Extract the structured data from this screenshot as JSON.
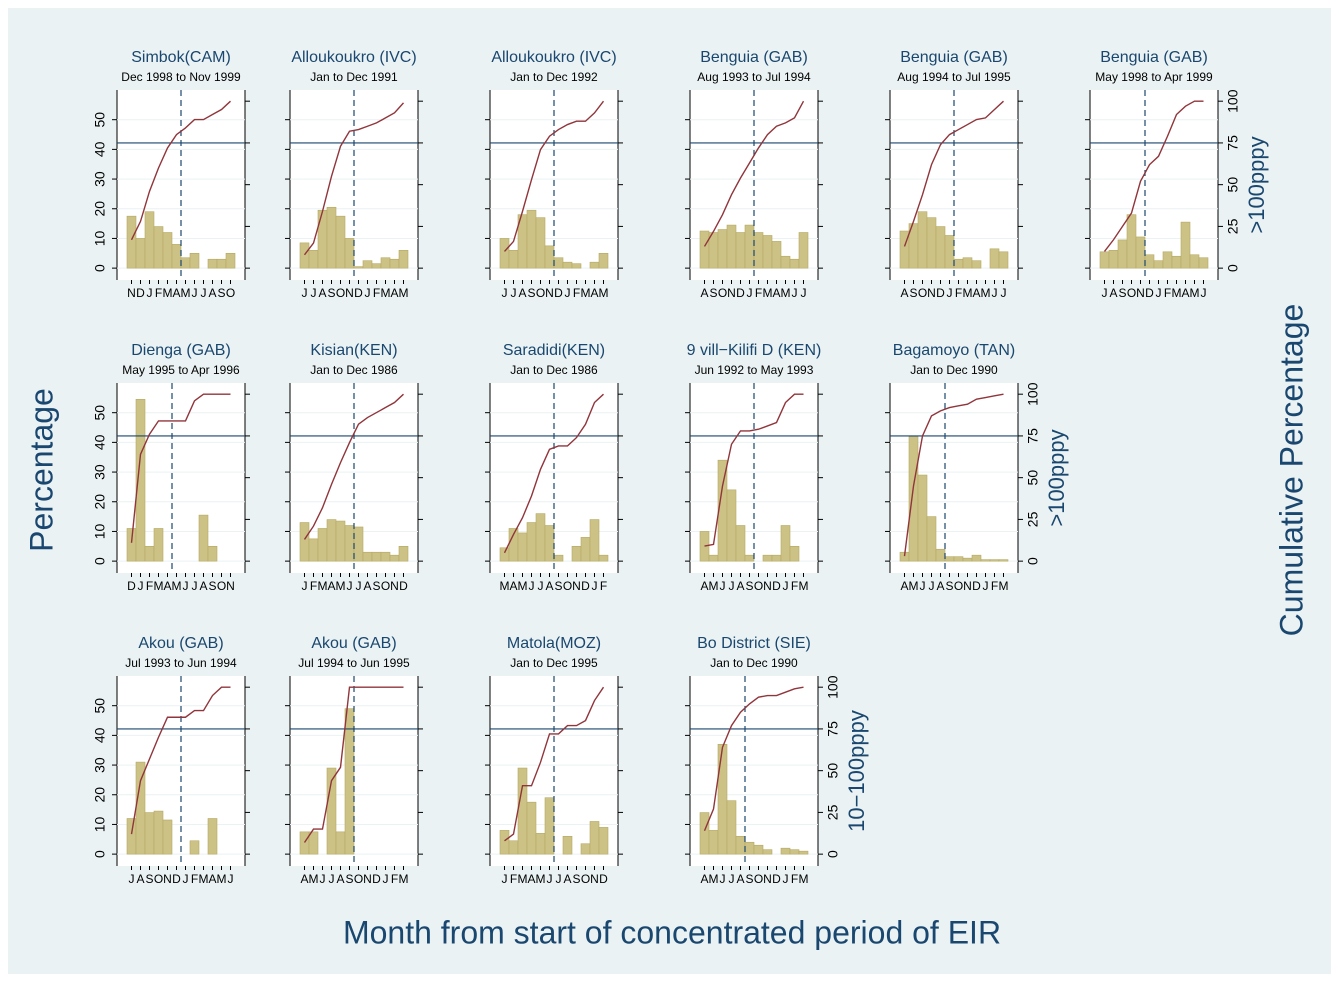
{
  "axis_labels": {
    "y": "Percentage",
    "y2": "Cumulative Percentage",
    "x": "Month from start of concentrated period of EIR"
  },
  "chart_data": [
    {
      "type": "bar",
      "title": "Simbok(CAM)",
      "subtitle": "Dec 1998 to Nov 1999",
      "categories": [
        "N",
        "D",
        "J",
        "F",
        "M",
        "A",
        "M",
        "J",
        "J",
        "A",
        "S",
        "O"
      ],
      "values": [
        17.5,
        10,
        19,
        14,
        12,
        8,
        3.5,
        5,
        0,
        3,
        3,
        5
      ],
      "cumulative": [
        17,
        28,
        46,
        60,
        72,
        80,
        84,
        89,
        89,
        92,
        95,
        100
      ],
      "reference_x": 5.5,
      "reference_y2": 75,
      "color": "#cdc285",
      "line_color": "#90353b",
      "ref_color": "#1a476f",
      "ylim": [
        -4,
        60
      ],
      "yticks": [
        0,
        10,
        20,
        30,
        40,
        50
      ],
      "y2lim": [
        -7.1,
        106.7
      ],
      "y2ticks": [
        0,
        25,
        50,
        75,
        100
      ],
      "left_labels": true,
      "right_labels": false
    },
    {
      "type": "bar",
      "title": "Alloukoukro (IVC)",
      "subtitle": "Jan to Dec 1991",
      "categories": [
        "J",
        "J",
        "A",
        "S",
        "O",
        "N",
        "D",
        "J",
        "F",
        "M",
        "A",
        "M"
      ],
      "values": [
        8.5,
        6,
        19.5,
        20.5,
        17.5,
        10,
        0.5,
        2.5,
        1.5,
        3.5,
        3,
        6
      ],
      "cumulative": [
        8,
        15,
        34,
        55,
        73,
        82,
        83,
        85,
        87,
        90,
        93,
        99
      ],
      "reference_x": 5.5,
      "reference_y2": 75,
      "color": "#cdc285",
      "line_color": "#90353b",
      "ref_color": "#1a476f",
      "ylim": [
        -4,
        60
      ],
      "yticks": [
        0,
        10,
        20,
        30,
        40,
        50
      ],
      "y2lim": [
        -7.1,
        106.7
      ],
      "y2ticks": [
        0,
        25,
        50,
        75,
        100
      ],
      "left_labels": false,
      "right_labels": false
    },
    {
      "type": "bar",
      "title": "Alloukoukro (IVC)",
      "subtitle": "Jan to Dec 1992",
      "categories": [
        "J",
        "J",
        "A",
        "S",
        "O",
        "N",
        "D",
        "J",
        "F",
        "M",
        "A",
        "M"
      ],
      "values": [
        10,
        6,
        18,
        19.5,
        17,
        7.5,
        3.5,
        2,
        1.5,
        0,
        2,
        5
      ],
      "cumulative": [
        10,
        16,
        34,
        53,
        71,
        79,
        83,
        86,
        88,
        88,
        93,
        100
      ],
      "reference_x": 5.5,
      "reference_y2": 75,
      "color": "#cdc285",
      "line_color": "#90353b",
      "ref_color": "#1a476f",
      "ylim": [
        -4,
        60
      ],
      "yticks": [
        0,
        10,
        20,
        30,
        40,
        50
      ],
      "y2lim": [
        -7.1,
        106.7
      ],
      "y2ticks": [
        0,
        25,
        50,
        75,
        100
      ],
      "left_labels": false,
      "right_labels": false
    },
    {
      "type": "bar",
      "title": "Benguia (GAB)",
      "subtitle": "Aug 1993 to Jul 1994",
      "categories": [
        "A",
        "S",
        "O",
        "N",
        "D",
        "J",
        "F",
        "M",
        "A",
        "M",
        "J",
        "J"
      ],
      "values": [
        12.5,
        12,
        13,
        14.5,
        12,
        14.5,
        12,
        11,
        9,
        4,
        3,
        12
      ],
      "cumulative": [
        13,
        22,
        32,
        44,
        54,
        63,
        72,
        80,
        85,
        87,
        90,
        100
      ],
      "reference_x": 5.5,
      "reference_y2": 75,
      "color": "#cdc285",
      "line_color": "#90353b",
      "ref_color": "#1a476f",
      "ylim": [
        -4,
        60
      ],
      "yticks": [
        0,
        10,
        20,
        30,
        40,
        50
      ],
      "y2lim": [
        -7.1,
        106.7
      ],
      "y2ticks": [
        0,
        25,
        50,
        75,
        100
      ],
      "left_labels": false,
      "right_labels": false
    },
    {
      "type": "bar",
      "title": "Benguia (GAB)",
      "subtitle": "Aug 1994 to Jul 1995",
      "categories": [
        "A",
        "S",
        "O",
        "N",
        "D",
        "J",
        "F",
        "M",
        "A",
        "M",
        "J",
        "J"
      ],
      "values": [
        12.5,
        15,
        19,
        17,
        14,
        11,
        3,
        3.5,
        2.5,
        0,
        6.5,
        5.5
      ],
      "cumulative": [
        13,
        28,
        44,
        62,
        74,
        80,
        83,
        86,
        89,
        90,
        95,
        100
      ],
      "reference_x": 5.5,
      "reference_y2": 75,
      "color": "#cdc285",
      "line_color": "#90353b",
      "ref_color": "#1a476f",
      "ylim": [
        -4,
        60
      ],
      "yticks": [
        0,
        10,
        20,
        30,
        40,
        50
      ],
      "y2lim": [
        -7.1,
        106.7
      ],
      "y2ticks": [
        0,
        25,
        50,
        75,
        100
      ],
      "left_labels": false,
      "right_labels": false
    },
    {
      "type": "bar",
      "title": "Benguia (GAB)",
      "subtitle": "May 1998 to Apr 1999",
      "categories": [
        "J",
        "A",
        "S",
        "O",
        "N",
        "D",
        "J",
        "F",
        "M",
        "A",
        "M",
        "J"
      ],
      "values": [
        5.5,
        6,
        9.5,
        18,
        10.5,
        4.5,
        2.5,
        5.5,
        4,
        15.5,
        4.5,
        3.5
      ],
      "cumulative": [
        10,
        17,
        25,
        33,
        52,
        62,
        67,
        79,
        92,
        97,
        100,
        100
      ],
      "reference_x": 4.5,
      "reference_y2": 75,
      "y2label": ">100pppy",
      "color": "#cdc285",
      "line_color": "#90353b",
      "ref_color": "#1a476f",
      "ylim": [
        -4,
        60
      ],
      "yticks": [
        0,
        10,
        20,
        30,
        40,
        50
      ],
      "y2lim": [
        -7.1,
        106.7
      ],
      "y2ticks": [
        0,
        25,
        50,
        75,
        100
      ],
      "left_labels": false,
      "right_labels": true
    },
    {
      "type": "bar",
      "title": "Dienga (GAB)",
      "subtitle": "May 1995 to Apr 1996",
      "categories": [
        "D",
        "J",
        "F",
        "M",
        "A",
        "M",
        "J",
        "J",
        "A",
        "S",
        "O",
        "N"
      ],
      "values": [
        11,
        54.5,
        5,
        11,
        0,
        0,
        0,
        0,
        15.5,
        5,
        0,
        0
      ],
      "cumulative": [
        11,
        64,
        76,
        84,
        84,
        84,
        84,
        96,
        100,
        100,
        100,
        100
      ],
      "reference_x": 4.5,
      "reference_y2": 75,
      "color": "#cdc285",
      "line_color": "#90353b",
      "ref_color": "#1a476f",
      "ylim": [
        -4,
        60
      ],
      "yticks": [
        0,
        10,
        20,
        30,
        40,
        50
      ],
      "y2lim": [
        -7.1,
        106.7
      ],
      "y2ticks": [
        0,
        25,
        50,
        75,
        100
      ],
      "left_labels": true,
      "right_labels": false
    },
    {
      "type": "bar",
      "title": "Kisian(KEN)",
      "subtitle": "Jan to Dec 1986",
      "categories": [
        "J",
        "F",
        "M",
        "A",
        "M",
        "J",
        "J",
        "A",
        "S",
        "O",
        "N",
        "D"
      ],
      "values": [
        13,
        7.5,
        11,
        14,
        13.5,
        12,
        11.5,
        3,
        3,
        3,
        2,
        5
      ],
      "cumulative": [
        13,
        21,
        32,
        46,
        59,
        71,
        82,
        86,
        89,
        92,
        95,
        100
      ],
      "reference_x": 5.5,
      "reference_y2": 75,
      "color": "#cdc285",
      "line_color": "#90353b",
      "ref_color": "#1a476f",
      "ylim": [
        -4,
        60
      ],
      "yticks": [
        0,
        10,
        20,
        30,
        40,
        50
      ],
      "y2lim": [
        -7.1,
        106.7
      ],
      "y2ticks": [
        0,
        25,
        50,
        75,
        100
      ],
      "left_labels": false,
      "right_labels": false
    },
    {
      "type": "bar",
      "title": "Saradidi(KEN)",
      "subtitle": "Jan to Dec 1986",
      "categories": [
        "M",
        "A",
        "M",
        "J",
        "J",
        "A",
        "S",
        "O",
        "N",
        "D",
        "J",
        "F"
      ],
      "values": [
        4.5,
        11,
        9.5,
        13,
        16,
        12,
        2,
        0,
        5,
        8,
        14,
        2
      ],
      "cumulative": [
        5,
        16,
        26,
        39,
        55,
        67,
        69,
        69,
        74,
        82,
        95,
        100
      ],
      "reference_x": 5.5,
      "reference_y2": 75,
      "color": "#cdc285",
      "line_color": "#90353b",
      "ref_color": "#1a476f",
      "ylim": [
        -4,
        60
      ],
      "yticks": [
        0,
        10,
        20,
        30,
        40,
        50
      ],
      "y2lim": [
        -7.1,
        106.7
      ],
      "y2ticks": [
        0,
        25,
        50,
        75,
        100
      ],
      "left_labels": false,
      "right_labels": false
    },
    {
      "type": "bar",
      "title": "9 vill−Kilifi D (KEN)",
      "subtitle": "Jun 1992 to May 1993",
      "categories": [
        "A",
        "M",
        "J",
        "J",
        "A",
        "S",
        "O",
        "N",
        "D",
        "J",
        "F",
        "M"
      ],
      "values": [
        10,
        2,
        34,
        24,
        12,
        2,
        0,
        2,
        2,
        12,
        5,
        0
      ],
      "cumulative": [
        9,
        10,
        45,
        70,
        78,
        78,
        79,
        81,
        83,
        95,
        100,
        100
      ],
      "reference_x": 5.5,
      "reference_y2": 75,
      "color": "#cdc285",
      "line_color": "#90353b",
      "ref_color": "#1a476f",
      "ylim": [
        -4,
        60
      ],
      "yticks": [
        0,
        10,
        20,
        30,
        40,
        50
      ],
      "y2lim": [
        -7.1,
        106.7
      ],
      "y2ticks": [
        0,
        25,
        50,
        75,
        100
      ],
      "left_labels": false,
      "right_labels": false
    },
    {
      "type": "bar",
      "title": "Bagamoyo (TAN)",
      "subtitle": "Jan to Dec 1990",
      "categories": [
        "A",
        "M",
        "J",
        "J",
        "A",
        "S",
        "O",
        "N",
        "D",
        "J",
        "F",
        "M"
      ],
      "values": [
        3,
        42,
        29,
        15,
        4,
        1.5,
        1.5,
        1,
        2,
        0.5,
        0.5,
        0.5
      ],
      "cumulative": [
        3,
        45,
        75,
        87,
        90,
        92,
        93,
        94,
        97,
        98,
        99,
        100
      ],
      "reference_x": 4.5,
      "reference_y2": 75,
      "y2label": ">100pppy",
      "color": "#cdc285",
      "line_color": "#90353b",
      "ref_color": "#1a476f",
      "ylim": [
        -4,
        60
      ],
      "yticks": [
        0,
        10,
        20,
        30,
        40,
        50
      ],
      "y2lim": [
        -7.1,
        106.7
      ],
      "y2ticks": [
        0,
        25,
        50,
        75,
        100
      ],
      "left_labels": false,
      "right_labels": true
    },
    {
      "type": "bar",
      "title": "Akou (GAB)",
      "subtitle": "Jul 1993 to Jun 1994",
      "categories": [
        "J",
        "A",
        "S",
        "O",
        "N",
        "D",
        "J",
        "F",
        "M",
        "A",
        "M",
        "J"
      ],
      "values": [
        12,
        31,
        14,
        14.5,
        11.5,
        0,
        0,
        4.5,
        0,
        12,
        0,
        0
      ],
      "cumulative": [
        12,
        44,
        57,
        70,
        82,
        82,
        82,
        86,
        86,
        95,
        100,
        100
      ],
      "reference_x": 5.5,
      "reference_y2": 75,
      "color": "#cdc285",
      "line_color": "#90353b",
      "ref_color": "#1a476f",
      "ylim": [
        -4,
        60
      ],
      "yticks": [
        0,
        10,
        20,
        30,
        40,
        50
      ],
      "y2lim": [
        -7.1,
        106.7
      ],
      "y2ticks": [
        0,
        25,
        50,
        75,
        100
      ],
      "left_labels": true,
      "right_labels": false
    },
    {
      "type": "bar",
      "title": "Akou (GAB)",
      "subtitle": "Jul 1994 to Jun 1995",
      "categories": [
        "A",
        "M",
        "J",
        "J",
        "A",
        "S",
        "O",
        "N",
        "D",
        "J",
        "F",
        "M"
      ],
      "values": [
        7.5,
        7.5,
        0,
        29,
        7.5,
        49,
        0,
        0,
        0,
        0,
        0,
        0
      ],
      "cumulative": [
        7,
        15,
        15,
        44,
        52,
        100,
        100,
        100,
        100,
        100,
        100,
        100
      ],
      "reference_x": 5.5,
      "reference_y2": 75,
      "color": "#cdc285",
      "line_color": "#90353b",
      "ref_color": "#1a476f",
      "ylim": [
        -4,
        60
      ],
      "yticks": [
        0,
        10,
        20,
        30,
        40,
        50
      ],
      "y2lim": [
        -7.1,
        106.7
      ],
      "y2ticks": [
        0,
        25,
        50,
        75,
        100
      ],
      "left_labels": false,
      "right_labels": false
    },
    {
      "type": "bar",
      "title": "Matola(MOZ)",
      "subtitle": "Jan to Dec 1995",
      "categories": [
        "J",
        "F",
        "M",
        "A",
        "M",
        "J",
        "J",
        "A",
        "S",
        "O",
        "N",
        "D"
      ],
      "values": [
        8,
        4.5,
        29,
        17.5,
        7,
        19,
        0,
        6,
        0,
        3.5,
        11,
        9
      ],
      "cumulative": [
        8,
        12,
        41,
        41,
        55,
        72,
        72,
        77,
        77,
        80,
        92,
        100
      ],
      "reference_x": 5.5,
      "reference_y2": 75,
      "color": "#cdc285",
      "line_color": "#90353b",
      "ref_color": "#1a476f",
      "ylim": [
        -4,
        60
      ],
      "yticks": [
        0,
        10,
        20,
        30,
        40,
        50
      ],
      "y2lim": [
        -7.1,
        106.7
      ],
      "y2ticks": [
        0,
        25,
        50,
        75,
        100
      ],
      "left_labels": false,
      "right_labels": false
    },
    {
      "type": "bar",
      "title": "Bo District (SIE)",
      "subtitle": "Jan to Dec 1990",
      "categories": [
        "A",
        "M",
        "J",
        "J",
        "A",
        "S",
        "O",
        "N",
        "D",
        "J",
        "F",
        "M"
      ],
      "values": [
        14,
        8,
        37,
        18,
        6,
        4,
        3,
        1.5,
        0,
        2,
        1.5,
        1
      ],
      "cumulative": [
        14,
        27,
        64,
        77,
        85,
        90,
        94,
        95,
        95,
        97,
        99,
        100
      ],
      "reference_x": 4.5,
      "reference_y2": 75,
      "y2label": "10−100pppy",
      "color": "#cdc285",
      "line_color": "#90353b",
      "ref_color": "#1a476f",
      "ylim": [
        -4,
        60
      ],
      "yticks": [
        0,
        10,
        20,
        30,
        40,
        50
      ],
      "y2lim": [
        -7.1,
        106.7
      ],
      "y2ticks": [
        0,
        25,
        50,
        75,
        100
      ],
      "left_labels": false,
      "right_labels": true
    }
  ]
}
